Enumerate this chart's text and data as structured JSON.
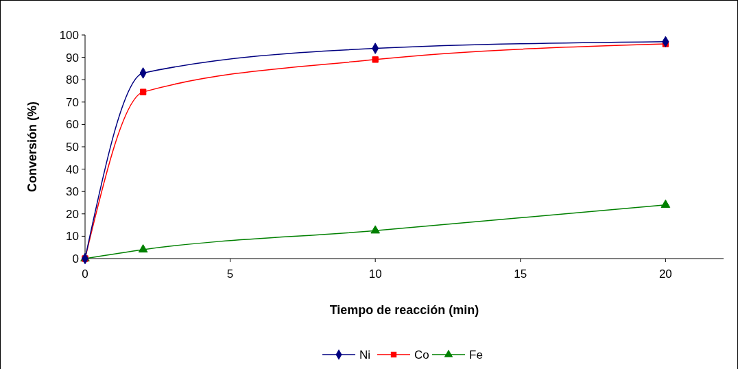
{
  "chart_data": {
    "type": "line",
    "xlabel": "Tiempo de reacción (min)",
    "ylabel": "Conversión (%)",
    "x": [
      0,
      2,
      10,
      20
    ],
    "series": [
      {
        "name": "Ni",
        "color": "#000080",
        "values": [
          0,
          83,
          94,
          97
        ],
        "marker": "diamond"
      },
      {
        "name": "Co",
        "color": "#ff0000",
        "values": [
          0,
          74.5,
          89,
          96
        ],
        "marker": "square"
      },
      {
        "name": "Fe",
        "color": "#008000",
        "values": [
          0,
          4,
          12.5,
          24
        ],
        "marker": "triangle"
      }
    ],
    "xlim": [
      0,
      22
    ],
    "xticks": [
      0,
      5,
      10,
      15,
      20
    ],
    "ylim": [
      0,
      100
    ],
    "yticks": [
      0,
      10,
      20,
      30,
      40,
      50,
      60,
      70,
      80,
      90,
      100
    ],
    "grid": false,
    "legend": "bottom",
    "line_style": "solid"
  }
}
